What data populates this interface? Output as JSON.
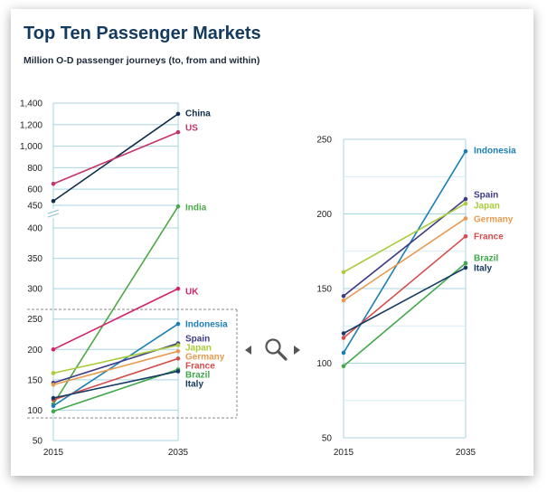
{
  "title": "Top Ten Passenger Markets",
  "subtitle": "Million O-D passenger journeys (to, from and within)",
  "zoom_icon": "magnifier-icon",
  "chart_data": [
    {
      "type": "line",
      "x": [
        "2015",
        "2035"
      ],
      "upper_ticks": [
        "1,400",
        "1,200",
        "1,000",
        "800",
        "600",
        "450"
      ],
      "lower_ticks": [
        "400",
        "350",
        "300",
        "250",
        "200",
        "150",
        "100",
        "50"
      ],
      "series": [
        {
          "name": "China",
          "values": [
            490,
            1300
          ],
          "color": "#0d2b4a"
        },
        {
          "name": "US",
          "values": [
            650,
            1130
          ],
          "color": "#c4336a"
        },
        {
          "name": "India",
          "values": [
            110,
            440
          ],
          "color": "#4da847"
        },
        {
          "name": "UK",
          "values": [
            200,
            300
          ],
          "color": "#d4256c"
        },
        {
          "name": "Indonesia",
          "values": [
            107,
            242
          ],
          "color": "#1a7fb5"
        },
        {
          "name": "Spain",
          "values": [
            145,
            210
          ],
          "color": "#3e3a86"
        },
        {
          "name": "Japan",
          "values": [
            161,
            207
          ],
          "color": "#a9cc3a"
        },
        {
          "name": "Germany",
          "values": [
            142,
            197
          ],
          "color": "#e89a50"
        },
        {
          "name": "France",
          "values": [
            117,
            185
          ],
          "color": "#d64a4a"
        },
        {
          "name": "Brazil",
          "values": [
            98,
            167
          ],
          "color": "#3fa84a"
        },
        {
          "name": "Italy",
          "values": [
            120,
            164
          ],
          "color": "#163a63"
        }
      ]
    },
    {
      "type": "line",
      "x": [
        "2015",
        "2035"
      ],
      "yticks": [
        "250",
        "200",
        "150",
        "100",
        "50"
      ],
      "ylim": [
        50,
        250
      ],
      "series": [
        {
          "name": "Indonesia",
          "values": [
            107,
            242
          ],
          "color": "#1a7fb5"
        },
        {
          "name": "Spain",
          "values": [
            145,
            210
          ],
          "color": "#3e3a86"
        },
        {
          "name": "Japan",
          "values": [
            161,
            207
          ],
          "color": "#a9cc3a"
        },
        {
          "name": "Germany",
          "values": [
            142,
            197
          ],
          "color": "#e89a50"
        },
        {
          "name": "France",
          "values": [
            117,
            185
          ],
          "color": "#d64a4a"
        },
        {
          "name": "Brazil",
          "values": [
            98,
            167
          ],
          "color": "#3fa84a"
        },
        {
          "name": "Italy",
          "values": [
            120,
            164
          ],
          "color": "#163a63"
        }
      ]
    }
  ]
}
